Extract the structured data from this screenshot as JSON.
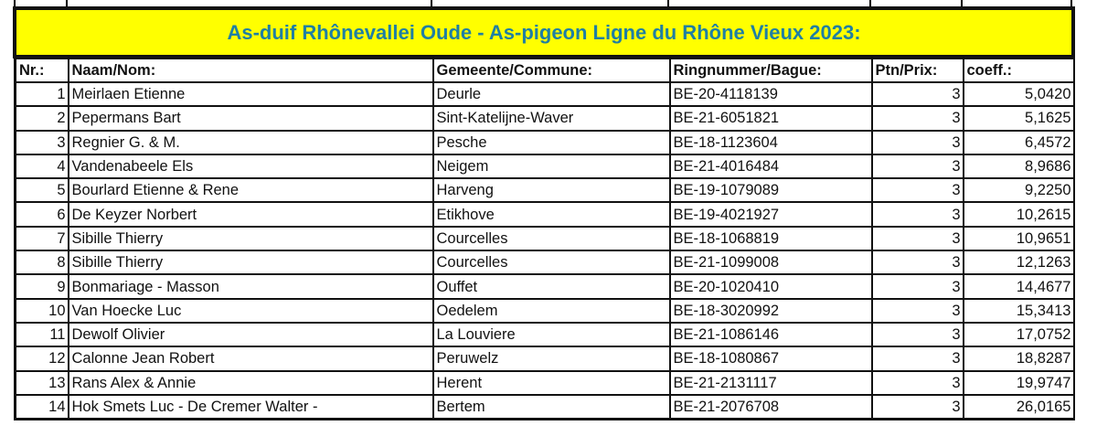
{
  "title": "As-duif Rhônevallei Oude - As-pigeon Ligne du Rhône Vieux 2023:",
  "colors": {
    "title_bg": "#ffff00",
    "title_text": "#1f7fa3"
  },
  "columns": [
    "Nr.:",
    "Naam/Nom:",
    "Gemeente/Commune:",
    "Ringnummer/Bague:",
    "Ptn/Prix:",
    "coeff.:"
  ],
  "rows": [
    {
      "nr": "1",
      "name": "Meirlaen Etienne",
      "commune": "Deurle",
      "ring": "BE-20-4118139",
      "ptn": "3",
      "coeff": "5,0420"
    },
    {
      "nr": "2",
      "name": "Pepermans Bart",
      "commune": "Sint-Katelijne-Waver",
      "ring": "BE-21-6051821",
      "ptn": "3",
      "coeff": "5,1625"
    },
    {
      "nr": "3",
      "name": "Regnier G. & M.",
      "commune": "Pesche",
      "ring": "BE-18-1123604",
      "ptn": "3",
      "coeff": "6,4572"
    },
    {
      "nr": "4",
      "name": "Vandenabeele Els",
      "commune": "Neigem",
      "ring": "BE-21-4016484",
      "ptn": "3",
      "coeff": "8,9686"
    },
    {
      "nr": "5",
      "name": "Bourlard Etienne & Rene",
      "commune": "Harveng",
      "ring": "BE-19-1079089",
      "ptn": "3",
      "coeff": "9,2250"
    },
    {
      "nr": "6",
      "name": "De Keyzer Norbert",
      "commune": "Etikhove",
      "ring": "BE-19-4021927",
      "ptn": "3",
      "coeff": "10,2615"
    },
    {
      "nr": "7",
      "name": "Sibille Thierry",
      "commune": "Courcelles",
      "ring": "BE-18-1068819",
      "ptn": "3",
      "coeff": "10,9651"
    },
    {
      "nr": "8",
      "name": "Sibille Thierry",
      "commune": "Courcelles",
      "ring": "BE-21-1099008",
      "ptn": "3",
      "coeff": "12,1263"
    },
    {
      "nr": "9",
      "name": "Bonmariage - Masson",
      "commune": "Ouffet",
      "ring": "BE-20-1020410",
      "ptn": "3",
      "coeff": "14,4677"
    },
    {
      "nr": "10",
      "name": "Van Hoecke Luc",
      "commune": "Oedelem",
      "ring": "BE-18-3020992",
      "ptn": "3",
      "coeff": "15,3413"
    },
    {
      "nr": "11",
      "name": "Dewolf Olivier",
      "commune": "La Louviere",
      "ring": "BE-21-1086146",
      "ptn": "3",
      "coeff": "17,0752"
    },
    {
      "nr": "12",
      "name": "Calonne Jean Robert",
      "commune": "Peruwelz",
      "ring": "BE-18-1080867",
      "ptn": "3",
      "coeff": "18,8287"
    },
    {
      "nr": "13",
      "name": "Rans Alex & Annie",
      "commune": "Herent",
      "ring": "BE-21-2131117",
      "ptn": "3",
      "coeff": "19,9747"
    },
    {
      "nr": "14",
      "name": "Hok Smets Luc - De Cremer Walter -",
      "commune": "Bertem",
      "ring": "BE-21-2076708",
      "ptn": "3",
      "coeff": "26,0165"
    }
  ]
}
